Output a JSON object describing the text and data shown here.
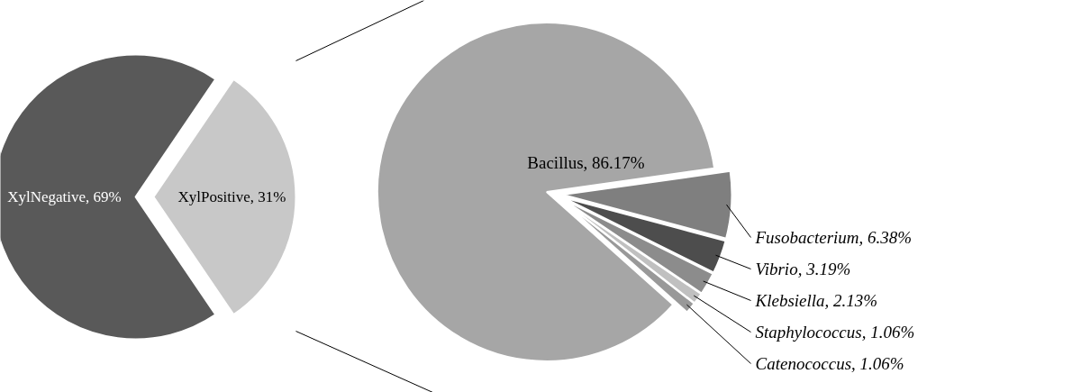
{
  "chart_data": [
    {
      "type": "pie",
      "categories": [
        "XylNegative",
        "XylPositive"
      ],
      "values": [
        69,
        31
      ],
      "value_labels": [
        "69%",
        "31%"
      ],
      "colors": [
        "#595959",
        "#c8c8c8"
      ]
    },
    {
      "type": "pie",
      "categories": [
        "Bacillus",
        "Fusobacterium",
        "Vibrio",
        "Klebsiella",
        "Staphylococcus",
        "Catenococcus"
      ],
      "values": [
        86.17,
        6.38,
        3.19,
        2.13,
        1.06,
        1.06
      ],
      "value_labels": [
        "86.17%",
        "6.38%",
        "3.19%",
        "2.13%",
        "1.06%",
        "1.06%"
      ],
      "colors": [
        "#a6a6a6",
        "#7f7f7f",
        "#4d4d4d",
        "#8c8c8c",
        "#c0c0c0",
        "#999999"
      ]
    }
  ]
}
